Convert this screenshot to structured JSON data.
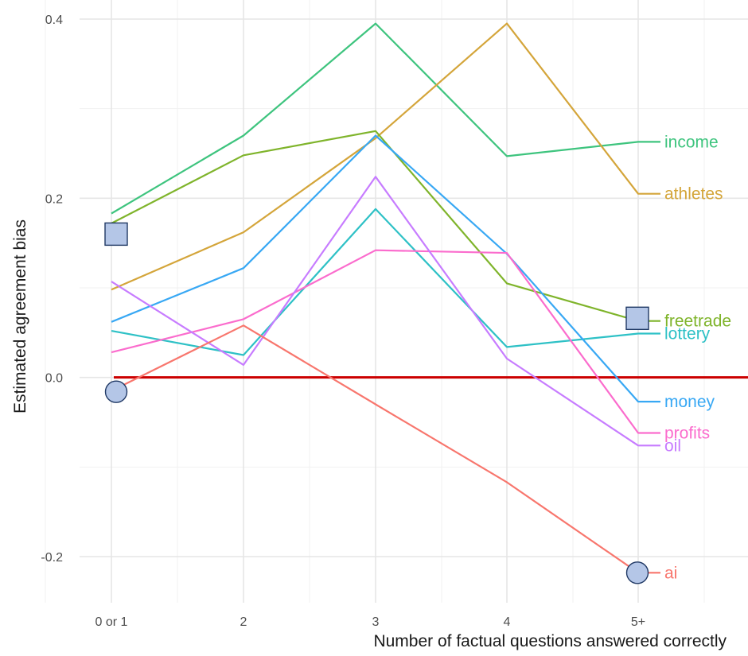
{
  "chart_data": {
    "type": "line",
    "xlabel": "Number of factual questions answered correctly",
    "ylabel": "Estimated agreement bias",
    "categories": [
      "0 or 1",
      "2",
      "3",
      "4",
      "5+"
    ],
    "y_ticks": [
      -0.2,
      0.0,
      0.2,
      0.4
    ],
    "y_tick_labels": [
      "-0.2",
      "0.0",
      "0.2",
      "0.4"
    ],
    "ylim": [
      -0.255,
      0.41
    ],
    "grid": true,
    "legend": "direct labels at line ends (right)",
    "reference_line": {
      "y": 0.0,
      "color": "#cc0000"
    },
    "series": [
      {
        "name": "income",
        "color": "#3ec47e",
        "values": [
          0.183,
          0.27,
          0.395,
          0.247,
          0.263
        ]
      },
      {
        "name": "athletes",
        "color": "#d4a53a",
        "values": [
          0.098,
          0.162,
          0.267,
          0.395,
          0.205
        ]
      },
      {
        "name": "freetrade",
        "color": "#7fb42b",
        "values": [
          0.172,
          0.248,
          0.275,
          0.105,
          0.063
        ]
      },
      {
        "name": "lottery",
        "color": "#2ec1c6",
        "values": [
          0.052,
          0.025,
          0.188,
          0.034,
          0.049
        ]
      },
      {
        "name": "money",
        "color": "#38a8f4",
        "values": [
          0.062,
          0.122,
          0.27,
          0.138,
          -0.027
        ]
      },
      {
        "name": "profits",
        "color": "#fb6ccd",
        "values": [
          0.028,
          0.065,
          0.142,
          0.139,
          -0.062
        ]
      },
      {
        "name": "oil",
        "color": "#c77cff",
        "values": [
          0.107,
          0.014,
          0.224,
          0.021,
          -0.076
        ]
      },
      {
        "name": "ai",
        "color": "#f8766d",
        "values": [
          -0.015,
          0.058,
          -0.03,
          -0.117,
          -0.218
        ]
      }
    ],
    "markers": [
      {
        "shape": "square",
        "x_index": 0,
        "y": 0.16,
        "color": "#b4c6e7"
      },
      {
        "shape": "square",
        "x_index": 4,
        "y": 0.066,
        "color": "#b4c6e7"
      },
      {
        "shape": "circle",
        "x_index": 0,
        "y": -0.016,
        "color": "#b4c6e7"
      },
      {
        "shape": "circle",
        "x_index": 4,
        "y": -0.218,
        "color": "#b4c6e7"
      }
    ]
  }
}
